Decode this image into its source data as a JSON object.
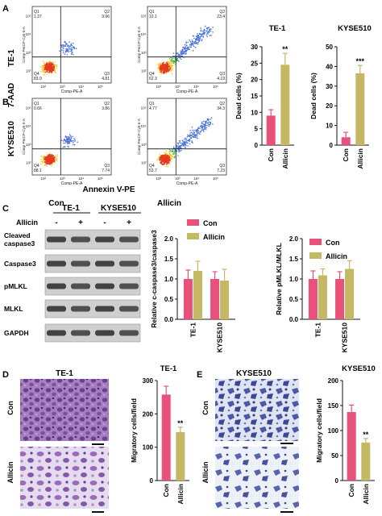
{
  "panels": {
    "A": "A",
    "B": "B",
    "C": "C",
    "D": "D",
    "E": "E"
  },
  "flow": {
    "row_labels": [
      "TE-1",
      "KYSE510"
    ],
    "y_channel": "7-AAD",
    "x_channel": "Annexin V-PE",
    "col_labels": [
      "Con",
      "Allicin"
    ],
    "x_axis_title": "Comp-PE-A",
    "y_axis_title": "Comp-PerCP-Cy5-5-A",
    "decade_ticks": [
      "10²",
      "10³",
      "10⁴",
      "10⁵"
    ],
    "quadrant_names": [
      "Q1",
      "Q2",
      "Q3",
      "Q4"
    ],
    "plots": [
      {
        "row": 0,
        "col": 0,
        "Q1": "1.37",
        "Q2": "9.96",
        "Q3": "4.81",
        "Q4": "83.9"
      },
      {
        "row": 0,
        "col": 1,
        "Q1": "10.1",
        "Q2": "23.4",
        "Q3": "4.19",
        "Q4": "62.3"
      },
      {
        "row": 1,
        "col": 0,
        "Q1": "0.66",
        "Q2": "3.86",
        "Q3": "7.74",
        "Q4": "88.1"
      },
      {
        "row": 1,
        "col": 1,
        "Q1": "4.77",
        "Q2": "34.3",
        "Q3": "7.23",
        "Q4": "53.7"
      }
    ]
  },
  "western": {
    "cell_lines": [
      "TE-1",
      "KYSE510"
    ],
    "treatment_label": "Allicin",
    "signs": [
      "-",
      "+",
      "-",
      "+"
    ],
    "bands": [
      "Cleaved caspase3",
      "Caspase3",
      "pMLKL",
      "MLKL",
      "GAPDH"
    ]
  },
  "micro": {
    "D_title": "TE-1",
    "E_title": "KYSE510",
    "row_labels": [
      "Con",
      "Allicin"
    ],
    "colors": {
      "purple": "#8a5fa8",
      "lightbg": "#e9e3f0",
      "blue": "#4a58a8"
    }
  },
  "colors": {
    "con": "#e8517a",
    "allicin": "#c4b864"
  },
  "chart_data": [
    {
      "type": "bar",
      "title": "TE-1",
      "categories": [
        "Con",
        "Allicin"
      ],
      "values": [
        9,
        24.5
      ],
      "errors": [
        1.8,
        3.5
      ],
      "significance": [
        "",
        "**"
      ],
      "ylabel": "Dead cells (%)",
      "ylim": [
        0,
        30
      ],
      "yticks": [
        0,
        5,
        10,
        15,
        20,
        25,
        30
      ]
    },
    {
      "type": "bar",
      "title": "KYSE510",
      "categories": [
        "Con",
        "Allicin"
      ],
      "values": [
        4,
        36.5
      ],
      "errors": [
        2.5,
        4
      ],
      "significance": [
        "",
        "***"
      ],
      "ylabel": "Dead cells (%)",
      "ylim": [
        0,
        50
      ],
      "yticks": [
        0,
        10,
        20,
        30,
        40,
        50
      ]
    },
    {
      "type": "bar",
      "categories": [
        "TE-1",
        "KYSE510"
      ],
      "series": [
        {
          "name": "Con",
          "values": [
            1.0,
            1.0
          ],
          "errors": [
            0.22,
            0.18
          ]
        },
        {
          "name": "Allicin",
          "values": [
            1.2,
            0.96
          ],
          "errors": [
            0.24,
            0.28
          ]
        }
      ],
      "ylabel": "Relative c-caspase3/caspase3",
      "ylim": [
        0,
        2
      ],
      "yticks": [
        0.0,
        0.5,
        1.0,
        1.5,
        2.0
      ],
      "legend": "top"
    },
    {
      "type": "bar",
      "categories": [
        "TE-1",
        "KYSE510"
      ],
      "series": [
        {
          "name": "Con",
          "values": [
            1.0,
            1.0
          ],
          "errors": [
            0.2,
            0.18
          ]
        },
        {
          "name": "Allicin",
          "values": [
            1.09,
            1.25
          ],
          "errors": [
            0.16,
            0.2
          ]
        }
      ],
      "ylabel": "Relative pMLKL/MLKL",
      "ylim": [
        0,
        2
      ],
      "yticks": [
        0.0,
        0.5,
        1.0,
        1.5,
        2.0
      ],
      "legend": "top"
    },
    {
      "type": "bar",
      "title": "TE-1",
      "categories": [
        "Con",
        "Allicin"
      ],
      "values": [
        258,
        145
      ],
      "errors": [
        25,
        15
      ],
      "significance": [
        "",
        "**"
      ],
      "ylabel": "Migratory cells/field",
      "ylim": [
        0,
        300
      ],
      "yticks": [
        0,
        100,
        200,
        300
      ]
    },
    {
      "type": "bar",
      "title": "KYSE510",
      "categories": [
        "Con",
        "Allicin"
      ],
      "values": [
        137,
        76
      ],
      "errors": [
        14,
        8
      ],
      "significance": [
        "",
        "**"
      ],
      "ylabel": "Migratory cells/field",
      "ylim": [
        0,
        200
      ],
      "yticks": [
        0,
        50,
        100,
        150,
        200
      ]
    }
  ]
}
